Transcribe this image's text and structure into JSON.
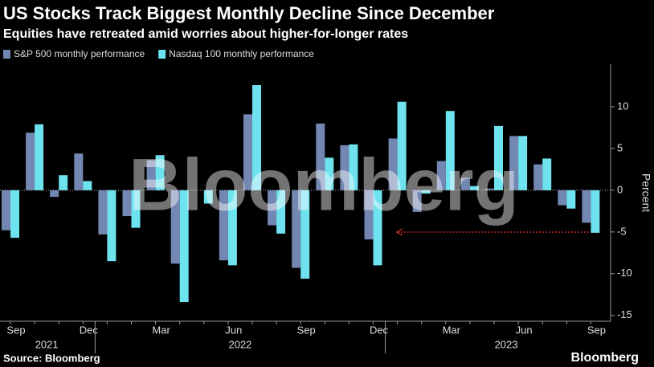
{
  "chart_data": {
    "type": "bar",
    "title": "US Stocks Track Biggest Monthly Decline Since December",
    "subtitle": "Equities have retreated amid worries about higher-for-longer rates",
    "y_label": "Percent",
    "source": "Source: Bloomberg",
    "brand": "Bloomberg",
    "watermark": "Bloomberg",
    "categories": [
      "Sep",
      null,
      null,
      "Dec",
      null,
      null,
      "Mar",
      null,
      null,
      "Jun",
      null,
      null,
      "Sep",
      null,
      null,
      "Dec",
      null,
      null,
      "Mar",
      null,
      null,
      "Jun",
      null,
      null,
      "Sep"
    ],
    "years": [
      "2021",
      "2022",
      "2023"
    ],
    "series": [
      {
        "name": "S&P 500 monthly performance",
        "color": "#7387b3",
        "values": [
          -4.8,
          6.9,
          -0.8,
          4.4,
          -5.3,
          -3.1,
          3.6,
          -8.8,
          0.0,
          -8.4,
          9.1,
          -4.2,
          -9.3,
          8.0,
          5.4,
          -5.9,
          6.2,
          -2.6,
          3.5,
          1.5,
          0.2,
          6.5,
          3.1,
          -1.8,
          -3.9
        ]
      },
      {
        "name": "Nasdaq 100 monthly performance",
        "color": "#6fe2ef",
        "values": [
          -5.7,
          7.9,
          1.8,
          1.1,
          -8.5,
          -4.5,
          4.2,
          -13.4,
          -1.6,
          -9.0,
          12.6,
          -5.2,
          -10.6,
          3.9,
          5.5,
          -9.0,
          10.6,
          -0.4,
          9.5,
          0.5,
          7.7,
          6.5,
          3.8,
          -2.2,
          -5.1
        ]
      }
    ],
    "ylim": [
      -15.7,
      15.1
    ],
    "yticks": [
      -15,
      -10,
      -5,
      0,
      5,
      10
    ]
  }
}
